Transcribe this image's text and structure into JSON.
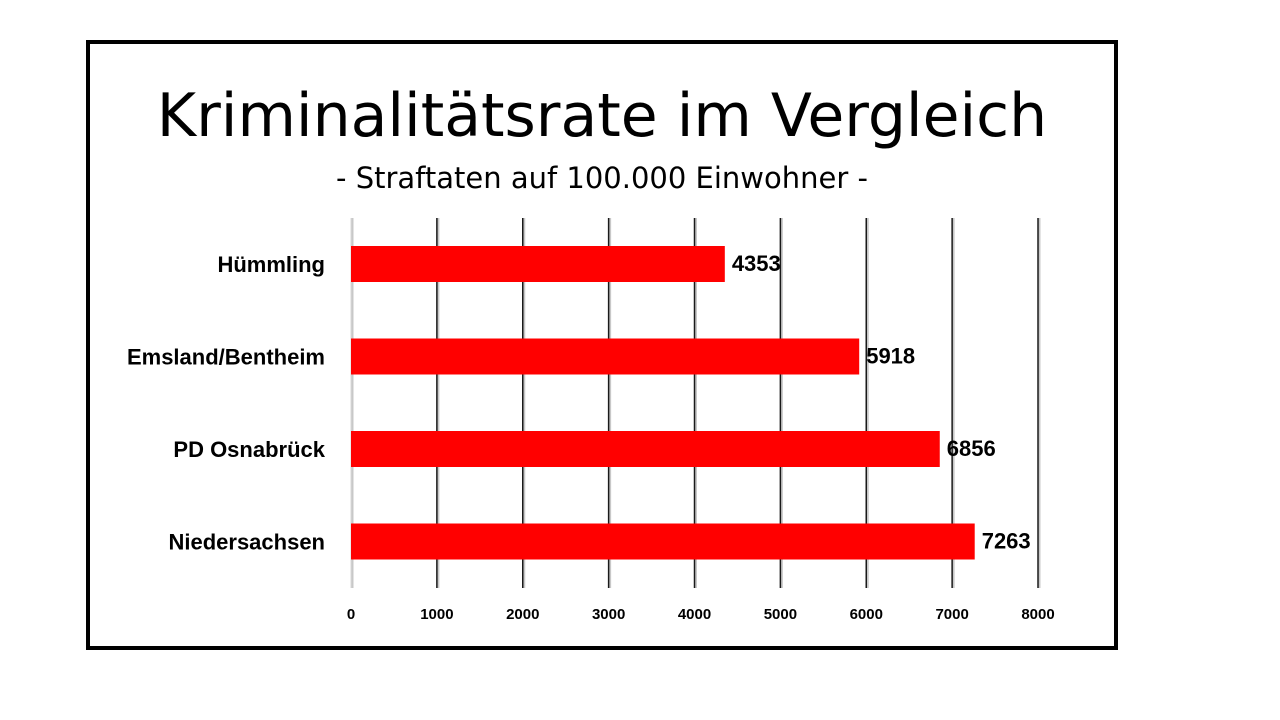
{
  "chart_data": {
    "type": "bar",
    "orientation": "horizontal",
    "title": "Kriminalitätsrate im Vergleich",
    "subtitle": "- Straftaten auf 100.000 Einwohner -",
    "categories": [
      "Hümmling",
      "Emsland/Bentheim",
      "PD Osnabrück",
      "Niedersachsen"
    ],
    "values": [
      4353,
      5918,
      6856,
      7263
    ],
    "xlim": [
      0,
      8000
    ],
    "xticks": [
      0,
      1000,
      2000,
      3000,
      4000,
      5000,
      6000,
      7000,
      8000
    ],
    "grid": "vertical",
    "legend": "none",
    "bar_color": "#ff0000",
    "frame_color": "#000000"
  }
}
